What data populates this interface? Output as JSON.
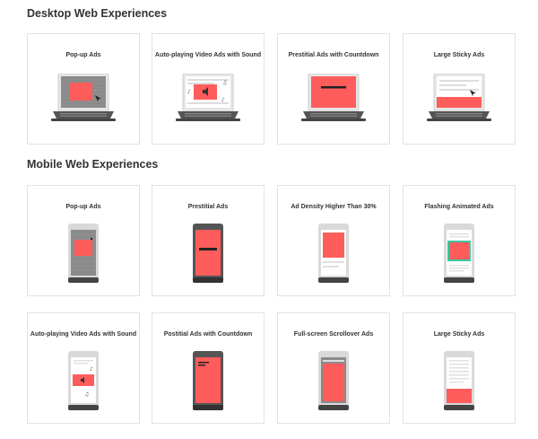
{
  "sections": [
    {
      "title": "Desktop Web Experiences",
      "cards": [
        {
          "label": "Pop-up Ads",
          "icon": "laptop-popup-icon"
        },
        {
          "label": "Auto-playing Video Ads with Sound",
          "icon": "laptop-autoplay-video-icon"
        },
        {
          "label": "Prestitial Ads with Countdown",
          "icon": "laptop-prestitial-countdown-icon"
        },
        {
          "label": "Large Sticky Ads",
          "icon": "laptop-sticky-ad-icon"
        }
      ]
    },
    {
      "title": "Mobile Web Experiences",
      "cards": [
        {
          "label": "Pop-up Ads",
          "icon": "phone-popup-icon"
        },
        {
          "label": "Prestitial Ads",
          "icon": "phone-prestitial-icon"
        },
        {
          "label": "Ad Density Higher Than 30%",
          "icon": "phone-ad-density-icon"
        },
        {
          "label": "Flashing Animated Ads",
          "icon": "phone-flashing-ad-icon"
        },
        {
          "label": "Auto-playing Video Ads with Sound",
          "icon": "phone-autoplay-video-icon"
        },
        {
          "label": "Postitial Ads with Countdown",
          "icon": "phone-postitial-countdown-icon"
        },
        {
          "label": "Full-screen Scrollover Ads",
          "icon": "phone-scrollover-icon"
        },
        {
          "label": "Large Sticky Ads",
          "icon": "phone-sticky-ad-icon"
        }
      ]
    }
  ],
  "colors": {
    "ad": "#ff5c5c",
    "frame": "#d9d9d9",
    "dark": "#555555",
    "accent_green": "#3cc7a0",
    "overlay": "#8a8a8a"
  }
}
